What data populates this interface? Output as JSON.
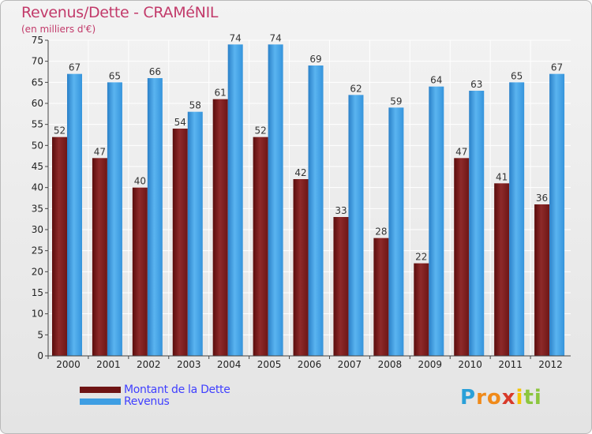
{
  "chart_data": {
    "type": "bar",
    "title": "Revenus/Dette - CRAMéNIL",
    "subtitle": "(en milliers d'€)",
    "categories": [
      "2000",
      "2001",
      "2002",
      "2003",
      "2004",
      "2005",
      "2006",
      "2007",
      "2008",
      "2009",
      "2010",
      "2011",
      "2012"
    ],
    "series": [
      {
        "name": "Montant de la Dette",
        "color": "#7a1a1a",
        "values": [
          52,
          47,
          40,
          54,
          61,
          52,
          42,
          33,
          28,
          22,
          47,
          41,
          36
        ]
      },
      {
        "name": "Revenus",
        "color": "#3e9ee3",
        "values": [
          67,
          65,
          66,
          58,
          74,
          74,
          69,
          62,
          59,
          64,
          63,
          65,
          67
        ]
      }
    ],
    "ylim": [
      0,
      75
    ],
    "yticks": [
      0,
      5,
      10,
      15,
      20,
      25,
      30,
      35,
      40,
      45,
      50,
      55,
      60,
      65,
      70,
      75
    ],
    "grid": true,
    "legend_position": "bottom-left"
  },
  "legend": {
    "debt_label": "Montant de la Dette",
    "revenue_label": "Revenus"
  },
  "logo": {
    "letters": [
      "P",
      "r",
      "o",
      "x",
      "i",
      "t",
      "i"
    ],
    "colors": [
      "#2aa0d8",
      "#f08a1a",
      "#f08a1a",
      "#d83a2a",
      "#f5c400",
      "#8cc63e",
      "#8cc63e"
    ]
  }
}
